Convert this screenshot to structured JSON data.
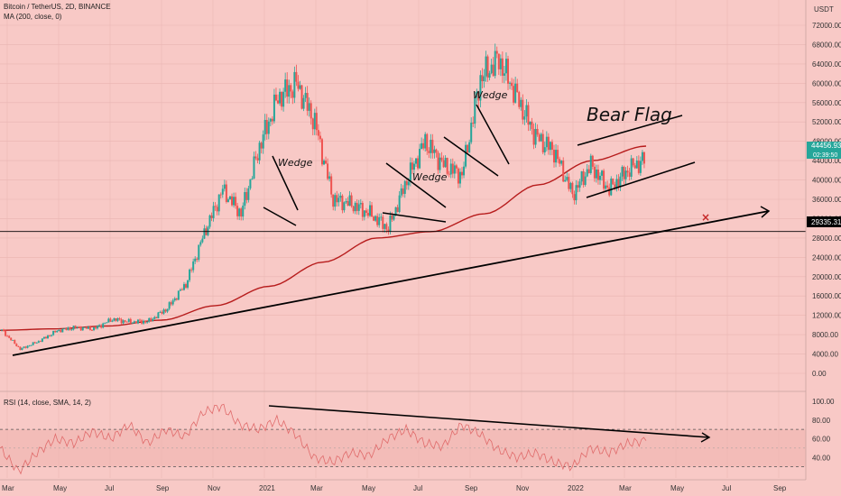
{
  "header": {
    "symbol": "Bitcoin / TetherUS, 2D, BINANCE",
    "ma_legend": "MA (200, close, 0)",
    "rsi_legend": "RSI (14, close, SMA, 14, 2)"
  },
  "price_axis": {
    "currency": "USDT",
    "ticks": [
      "72000.00",
      "68000.00",
      "64000.00",
      "60000.00",
      "56000.00",
      "52000.00",
      "48000.00",
      "44000.00",
      "40000.00",
      "36000.00",
      "32000.00",
      "28000.00",
      "24000.00",
      "20000.00",
      "16000.00",
      "12000.00",
      "8000.00",
      "4000.00",
      "0.00"
    ],
    "current_price": "44456.93",
    "countdown": "02:39:50",
    "level_label": "29335.31"
  },
  "rsi_axis": {
    "ticks": [
      "100.00",
      "80.00",
      "60.00",
      "40.00"
    ]
  },
  "time_axis": {
    "ticks": [
      "Mar",
      "May",
      "Jul",
      "Sep",
      "Nov",
      "2021",
      "Mar",
      "May",
      "Jul",
      "Sep",
      "Nov",
      "2022",
      "Mar",
      "May",
      "Jul",
      "Sep"
    ]
  },
  "annotations": {
    "wedge_1": "Wedge",
    "wedge_2": "Wedge",
    "wedge_3": "Wedge",
    "bear_flag": "Bear Flag",
    "cross_mark": "×"
  },
  "colors": {
    "background": "#f8c9c6",
    "candle_up": "#26a69a",
    "candle_down": "#ef5350",
    "ma_line": "#b71c1c",
    "rsi_line": "#e06b6b",
    "trendline": "#000000",
    "price_badge": "#26a69a",
    "level_badge": "#000000",
    "cross_mark": "#c62828"
  },
  "chart_data": {
    "type": "candlestick",
    "title": "Bitcoin / TetherUS, 2D, BINANCE",
    "y_range": [
      0,
      72000
    ],
    "horizontal_level": 29335.31,
    "x_period_ticks": [
      "Mar",
      "May",
      "Jul",
      "Sep",
      "Nov",
      "2021",
      "Mar",
      "May",
      "Jul",
      "Sep",
      "Nov",
      "2022",
      "Mar",
      "May",
      "Jul",
      "Sep"
    ],
    "price_path": [
      {
        "t": "Mar",
        "close": 8900
      },
      {
        "t": "Mar",
        "close": 5000
      },
      {
        "t": "Mar",
        "close": 6600
      },
      {
        "t": "May",
        "close": 8800
      },
      {
        "t": "May",
        "close": 9500
      },
      {
        "t": "Jul",
        "close": 9200
      },
      {
        "t": "Jul",
        "close": 11200
      },
      {
        "t": "Sep",
        "close": 10600
      },
      {
        "t": "Sep",
        "close": 10800
      },
      {
        "t": "Nov",
        "close": 13500
      },
      {
        "t": "Nov",
        "close": 18500
      },
      {
        "t": "2021",
        "close": 29000
      },
      {
        "t": "2021",
        "close": 38000
      },
      {
        "t": "2021",
        "close": 33000
      },
      {
        "t": "2021",
        "close": 47000
      },
      {
        "t": "Mar",
        "close": 57000
      },
      {
        "t": "Mar",
        "close": 60000
      },
      {
        "t": "May",
        "close": 52000
      },
      {
        "t": "May",
        "close": 36000
      },
      {
        "t": "May",
        "close": 35000
      },
      {
        "t": "Jul",
        "close": 33000
      },
      {
        "t": "Jul",
        "close": 30000
      },
      {
        "t": "Jul",
        "close": 40000
      },
      {
        "t": "Sep",
        "close": 48000
      },
      {
        "t": "Sep",
        "close": 43000
      },
      {
        "t": "Sep",
        "close": 41000
      },
      {
        "t": "Nov",
        "close": 61000
      },
      {
        "t": "Nov",
        "close": 65000
      },
      {
        "t": "Nov",
        "close": 57000
      },
      {
        "t": "Nov",
        "close": 49000
      },
      {
        "t": "2022",
        "close": 46000
      },
      {
        "t": "2022",
        "close": 37000
      },
      {
        "t": "2022",
        "close": 43000
      },
      {
        "t": "Mar",
        "close": 38000
      },
      {
        "t": "Mar",
        "close": 42000
      },
      {
        "t": "Mar",
        "close": 44457
      }
    ],
    "ma200_path": [
      8900,
      9200,
      9800,
      11000,
      14000,
      18000,
      23000,
      28000,
      29300,
      33000,
      39000,
      44000,
      47000
    ],
    "rsi_range": [
      20,
      100
    ],
    "rsi_path": [
      50,
      25,
      45,
      60,
      55,
      68,
      60,
      75,
      55,
      70,
      62,
      88,
      95,
      75,
      70,
      80,
      65,
      40,
      35,
      45,
      42,
      60,
      70,
      55,
      52,
      75,
      65,
      48,
      40,
      45,
      35,
      30,
      50,
      45,
      55,
      58
    ]
  }
}
